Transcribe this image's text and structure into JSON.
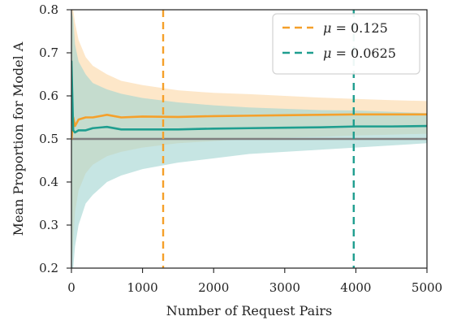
{
  "chart_data": {
    "type": "line",
    "xlabel": "Number of Request Pairs",
    "ylabel": "Mean Proportion for Model A",
    "xlim": [
      0,
      5000
    ],
    "ylim": [
      0.2,
      0.8
    ],
    "xticks": [
      0,
      1000,
      2000,
      3000,
      4000,
      5000
    ],
    "yticks": [
      0.2,
      0.3,
      0.4,
      0.5,
      0.6,
      0.7,
      0.8
    ],
    "xtick_labels": [
      "0",
      "1000",
      "2000",
      "3000",
      "4000",
      "5000"
    ],
    "ytick_labels": [
      "0.2",
      "0.3",
      "0.4",
      "0.5",
      "0.6",
      "0.7",
      "0.8"
    ],
    "reference_line": {
      "y": 0.5,
      "color": "#7f7f7f"
    },
    "grid": false,
    "legend_position": "top-right",
    "series": [
      {
        "name": "μ = 0.125",
        "legend_math": "μ",
        "legend_value": " = 0.125",
        "color": "#f5a02a",
        "band_color": "#fcd8a8",
        "vline_x": 1290,
        "points": [
          {
            "x": 0,
            "y": 0.5,
            "lower": 0.2,
            "upper": 0.8
          },
          {
            "x": 25,
            "y": 0.55,
            "lower": 0.26,
            "upper": 0.8
          },
          {
            "x": 50,
            "y": 0.53,
            "lower": 0.33,
            "upper": 0.77
          },
          {
            "x": 100,
            "y": 0.545,
            "lower": 0.38,
            "upper": 0.73
          },
          {
            "x": 200,
            "y": 0.55,
            "lower": 0.42,
            "upper": 0.69
          },
          {
            "x": 300,
            "y": 0.55,
            "lower": 0.44,
            "upper": 0.67
          },
          {
            "x": 500,
            "y": 0.556,
            "lower": 0.46,
            "upper": 0.65
          },
          {
            "x": 700,
            "y": 0.55,
            "lower": 0.47,
            "upper": 0.635
          },
          {
            "x": 1000,
            "y": 0.552,
            "lower": 0.48,
            "upper": 0.625
          },
          {
            "x": 1500,
            "y": 0.551,
            "lower": 0.49,
            "upper": 0.613
          },
          {
            "x": 2000,
            "y": 0.553,
            "lower": 0.495,
            "upper": 0.607
          },
          {
            "x": 2500,
            "y": 0.554,
            "lower": 0.5,
            "upper": 0.604
          },
          {
            "x": 3000,
            "y": 0.555,
            "lower": 0.503,
            "upper": 0.6
          },
          {
            "x": 3500,
            "y": 0.556,
            "lower": 0.505,
            "upper": 0.596
          },
          {
            "x": 4000,
            "y": 0.557,
            "lower": 0.508,
            "upper": 0.593
          },
          {
            "x": 4500,
            "y": 0.557,
            "lower": 0.51,
            "upper": 0.59
          },
          {
            "x": 5000,
            "y": 0.557,
            "lower": 0.512,
            "upper": 0.588
          }
        ]
      },
      {
        "name": "μ = 0.0625",
        "legend_math": "μ",
        "legend_value": " = 0.0625",
        "color": "#1f9e8f",
        "band_color": "#a3d5d2",
        "vline_x": 3970,
        "points": [
          {
            "x": 0,
            "y": 0.68,
            "lower": 0.2,
            "upper": 0.8
          },
          {
            "x": 25,
            "y": 0.52,
            "lower": 0.2,
            "upper": 0.78
          },
          {
            "x": 50,
            "y": 0.515,
            "lower": 0.25,
            "upper": 0.72
          },
          {
            "x": 100,
            "y": 0.52,
            "lower": 0.3,
            "upper": 0.68
          },
          {
            "x": 200,
            "y": 0.52,
            "lower": 0.35,
            "upper": 0.65
          },
          {
            "x": 300,
            "y": 0.525,
            "lower": 0.37,
            "upper": 0.63
          },
          {
            "x": 500,
            "y": 0.528,
            "lower": 0.4,
            "upper": 0.615
          },
          {
            "x": 700,
            "y": 0.522,
            "lower": 0.415,
            "upper": 0.605
          },
          {
            "x": 1000,
            "y": 0.522,
            "lower": 0.43,
            "upper": 0.595
          },
          {
            "x": 1500,
            "y": 0.522,
            "lower": 0.445,
            "upper": 0.585
          },
          {
            "x": 2000,
            "y": 0.524,
            "lower": 0.455,
            "upper": 0.578
          },
          {
            "x": 2500,
            "y": 0.525,
            "lower": 0.465,
            "upper": 0.573
          },
          {
            "x": 3000,
            "y": 0.526,
            "lower": 0.47,
            "upper": 0.57
          },
          {
            "x": 3500,
            "y": 0.527,
            "lower": 0.475,
            "upper": 0.567
          },
          {
            "x": 4000,
            "y": 0.529,
            "lower": 0.48,
            "upper": 0.566
          },
          {
            "x": 4500,
            "y": 0.529,
            "lower": 0.485,
            "upper": 0.563
          },
          {
            "x": 5000,
            "y": 0.53,
            "lower": 0.49,
            "upper": 0.56
          }
        ]
      }
    ]
  }
}
